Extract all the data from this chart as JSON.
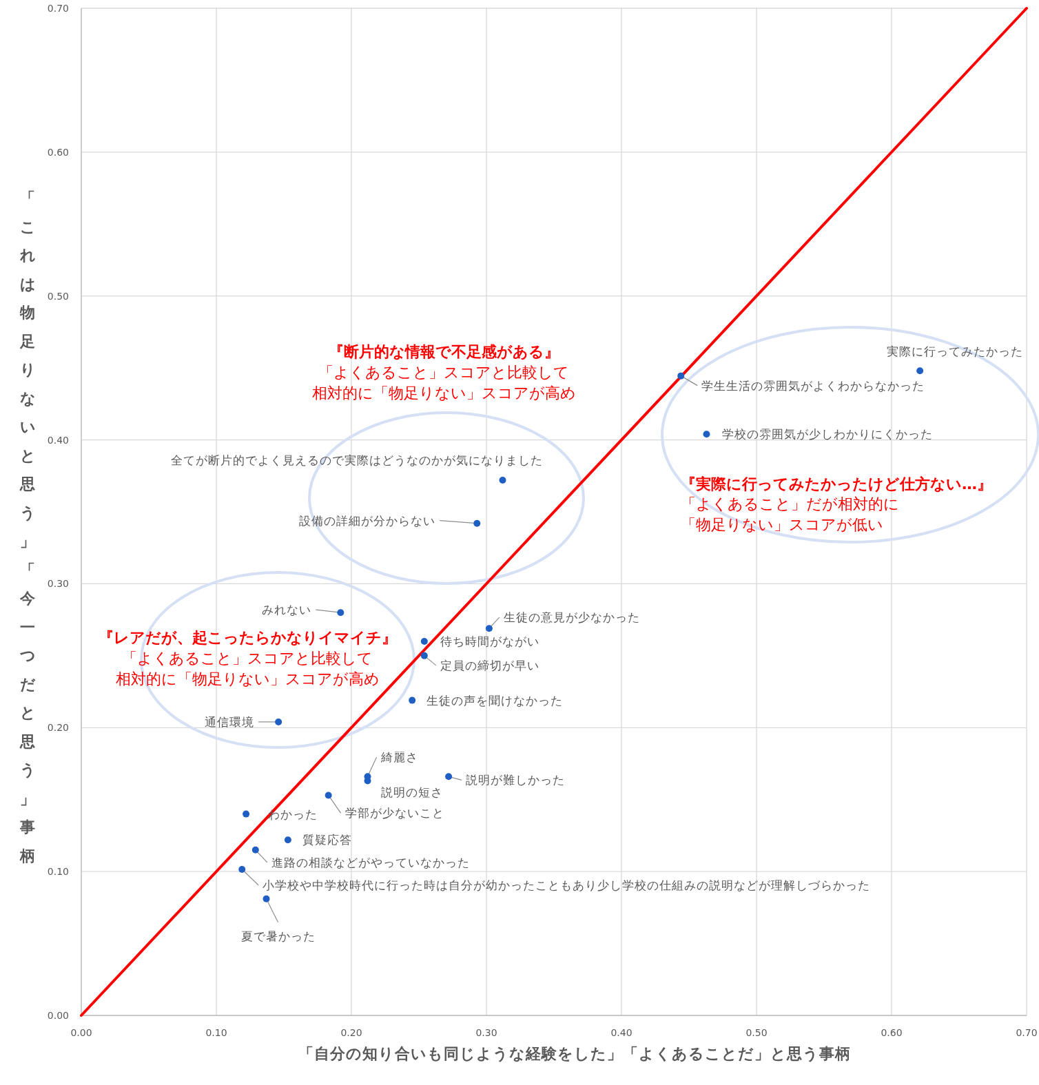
{
  "chart_data": {
    "type": "scatter",
    "xlabel": "「自分の知り合いも同じような経験をした」「よくあることだ」と思う事柄",
    "ylabel": "「これは物足りないと思う」「今一つだと思う」事柄",
    "xlim": [
      0,
      0.7
    ],
    "ylim": [
      0,
      0.7
    ],
    "xticks": [
      {
        "value": 0,
        "label": "0.00"
      },
      {
        "value": 0.1,
        "label": "0.10"
      },
      {
        "value": 0.2,
        "label": "0.20"
      },
      {
        "value": 0.3,
        "label": "0.30"
      },
      {
        "value": 0.4,
        "label": "0.40"
      },
      {
        "value": 0.5,
        "label": "0.50"
      },
      {
        "value": 0.6,
        "label": "0.60"
      },
      {
        "value": 0.7,
        "label": "0.70"
      }
    ],
    "yticks": [
      {
        "value": 0,
        "label": "0.00"
      },
      {
        "value": 0.1,
        "label": "0.10"
      },
      {
        "value": 0.2,
        "label": "0.20"
      },
      {
        "value": 0.3,
        "label": "0.30"
      },
      {
        "value": 0.4,
        "label": "0.40"
      },
      {
        "value": 0.5,
        "label": "0.50"
      },
      {
        "value": 0.6,
        "label": "0.60"
      },
      {
        "value": 0.7,
        "label": "0.70"
      }
    ],
    "grid": true,
    "marker": "circle",
    "series": [
      {
        "type": "line",
        "marker": "none",
        "color": "#ff0000",
        "x": [
          0,
          0.7
        ],
        "values": [
          0,
          0.7
        ]
      },
      {
        "color": "#1f5fc4",
        "x": [
          0.621,
          0.444,
          0.463,
          0.312,
          0.293,
          0.192,
          0.302,
          0.254,
          0.254,
          0.245,
          0.146,
          0.212,
          0.212,
          0.272,
          0.183,
          0.122,
          0.153,
          0.129,
          0.119,
          0.137
        ],
        "values": [
          0.448,
          0.4445,
          0.404,
          0.372,
          0.342,
          0.28,
          0.269,
          0.26,
          0.25,
          0.219,
          0.204,
          0.166,
          0.163,
          0.166,
          0.153,
          0.14,
          0.122,
          0.115,
          0.1015,
          0.081
        ]
      }
    ],
    "annotations": [
      {
        "text": "実際に行ってみたかった",
        "x": 0.621,
        "y": 0.448
      },
      {
        "text": "学生生活の雰囲気がよくわからなかった",
        "x": 0.444,
        "y": 0.4445
      },
      {
        "text": "学校の雰囲気が少しわかりにくかった",
        "x": 0.463,
        "y": 0.404
      },
      {
        "text": "全てが断片的でよく見えるので実際はどうなのかが気になりました",
        "x": 0.312,
        "y": 0.372
      },
      {
        "text": "設備の詳細が分からない",
        "x": 0.293,
        "y": 0.342
      },
      {
        "text": "みれない",
        "x": 0.192,
        "y": 0.28
      },
      {
        "text": "生徒の意見が少なかった",
        "x": 0.302,
        "y": 0.269
      },
      {
        "text": "待ち時間がながい",
        "x": 0.254,
        "y": 0.26
      },
      {
        "text": "定員の締切が早い",
        "x": 0.254,
        "y": 0.25
      },
      {
        "text": "生徒の声を聞けなかった",
        "x": 0.245,
        "y": 0.219
      },
      {
        "text": "通信環境",
        "x": 0.146,
        "y": 0.204
      },
      {
        "text": "綺麗さ",
        "x": 0.212,
        "y": 0.166
      },
      {
        "text": "説明の短さ",
        "x": 0.212,
        "y": 0.163
      },
      {
        "text": "説明が難しかった",
        "x": 0.272,
        "y": 0.166
      },
      {
        "text": "学部が少ないこと",
        "x": 0.183,
        "y": 0.153
      },
      {
        "text": "わかった",
        "x": 0.122,
        "y": 0.14
      },
      {
        "text": "質疑応答",
        "x": 0.153,
        "y": 0.122
      },
      {
        "text": "進路の相談などがやっていなかった",
        "x": 0.129,
        "y": 0.115
      },
      {
        "text": "小学校や中学校時代に行った時は自分が幼かったこともあり少し学校の仕組みの説明などが理解しづらかった",
        "x": 0.119,
        "y": 0.1015
      },
      {
        "text": "夏で暑かった",
        "x": 0.137,
        "y": 0.081
      },
      "『断片的な情報で不足感がある』",
      "「よくあること」スコアと比較して",
      "相対的に「物足りない」スコアが高め",
      "『実際に行ってみたかったけど仕方ない…』",
      "「よくあること」だが相対的に",
      "「物足りない」スコアが低い",
      "『レアだが、起こったらかなりイマイチ』",
      "「よくあること」スコアと比較して",
      "相対的に「物足りない」スコアが高め"
    ]
  }
}
